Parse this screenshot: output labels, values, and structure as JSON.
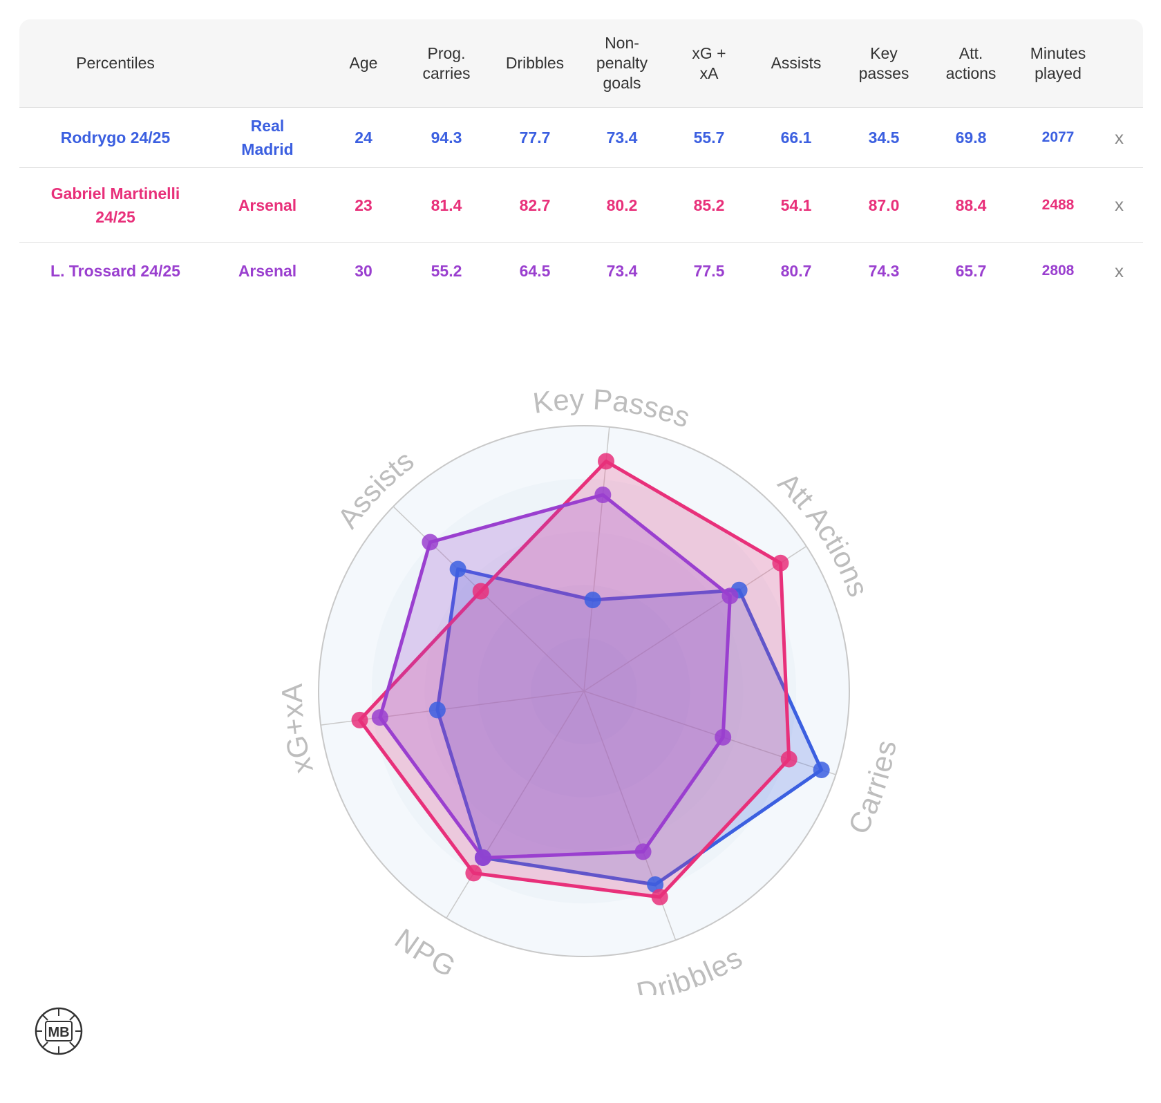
{
  "table": {
    "headers": [
      "Percentiles",
      "",
      "Age",
      "Prog.\ncarries",
      "Dribbles",
      "Non-\npenalty\ngoals",
      "xG +\nxA",
      "Assists",
      "Key\npasses",
      "Att.\nactions",
      "Minutes\nplayed"
    ],
    "remove_label": "x",
    "rows": [
      {
        "player": "Rodrygo 24/25",
        "team": "Real\nMadrid",
        "age": "24",
        "prog_carries": "94.3",
        "dribbles": "77.7",
        "npg": "73.4",
        "xg_xa": "55.7",
        "assists": "66.1",
        "key_passes": "34.5",
        "att_actions": "69.8",
        "minutes": "2077",
        "color": "#3b5fe0"
      },
      {
        "player": "Gabriel Martinelli\n24/25",
        "team": "Arsenal",
        "age": "23",
        "prog_carries": "81.4",
        "dribbles": "82.7",
        "npg": "80.2",
        "xg_xa": "85.2",
        "assists": "54.1",
        "key_passes": "87.0",
        "att_actions": "88.4",
        "minutes": "2488",
        "color": "#e8307a"
      },
      {
        "player": "L. Trossard 24/25",
        "team": "Arsenal",
        "age": "30",
        "prog_carries": "55.2",
        "dribbles": "64.5",
        "npg": "73.4",
        "xg_xa": "77.5",
        "assists": "80.7",
        "key_passes": "74.3",
        "att_actions": "65.7",
        "minutes": "2808",
        "color": "#9a3fcf"
      }
    ]
  },
  "chart_data": {
    "type": "radar",
    "axes": [
      "Key Passes",
      "Att Actions",
      "Carries",
      "Dribbles",
      "NPG",
      "xG+xA",
      "Assists"
    ],
    "range": [
      0,
      100
    ],
    "series": [
      {
        "name": "Rodrygo 24/25",
        "values": [
          34.5,
          69.8,
          94.3,
          77.7,
          73.4,
          55.7,
          66.1
        ],
        "color": "#3b5fe0"
      },
      {
        "name": "Gabriel Martinelli 24/25",
        "values": [
          87.0,
          88.4,
          81.4,
          82.7,
          80.2,
          85.2,
          54.1
        ],
        "color": "#e8307a"
      },
      {
        "name": "L. Trossard 24/25",
        "values": [
          74.3,
          65.7,
          55.2,
          64.5,
          73.4,
          77.5,
          80.7
        ],
        "color": "#9a3fcf"
      }
    ]
  },
  "logo": {
    "text": "MB"
  }
}
